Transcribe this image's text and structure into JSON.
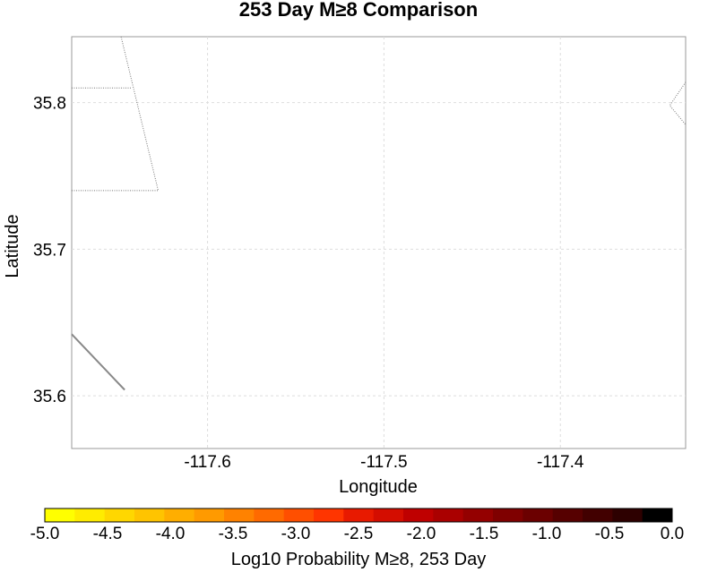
{
  "map": {
    "title": "253 Day M≥8 Comparison",
    "xlabel": "Longitude",
    "ylabel": "Latitude",
    "xlim": [
      -117.677,
      -117.329
    ],
    "ylim": [
      35.564,
      35.845
    ],
    "x_ticks": [
      {
        "value": -117.6,
        "label": "-117.6"
      },
      {
        "value": -117.5,
        "label": "-117.5"
      },
      {
        "value": -117.4,
        "label": "-117.4"
      }
    ],
    "y_ticks": [
      {
        "value": 35.8,
        "label": "35.8"
      },
      {
        "value": 35.7,
        "label": "35.7"
      },
      {
        "value": 35.6,
        "label": "35.6"
      }
    ],
    "grid": true,
    "features": [
      {
        "name": "boundary-line-1",
        "style": "dotted",
        "points": [
          [
            -117.677,
            35.81
          ],
          [
            -117.643,
            35.81
          ]
        ]
      },
      {
        "name": "boundary-line-2",
        "style": "dotted",
        "points": [
          [
            -117.649,
            35.845
          ],
          [
            -117.628,
            35.74
          ]
        ]
      },
      {
        "name": "boundary-line-3",
        "style": "dotted",
        "points": [
          [
            -117.677,
            35.74
          ],
          [
            -117.628,
            35.74
          ]
        ]
      },
      {
        "name": "boundary-line-4",
        "style": "dotted",
        "points": [
          [
            -117.329,
            35.814
          ],
          [
            -117.338,
            35.798
          ],
          [
            -117.329,
            35.785
          ]
        ]
      },
      {
        "name": "fault-trace",
        "style": "solid",
        "points": [
          [
            -117.677,
            35.642
          ],
          [
            -117.647,
            35.604
          ]
        ]
      }
    ]
  },
  "colorbar": {
    "label": "Log10 Probability M≥8, 253 Day",
    "min": -5.0,
    "max": 0.0,
    "tick_labels": [
      "-5.0",
      "-4.5",
      "-4.0",
      "-3.5",
      "-3.0",
      "-2.5",
      "-2.0",
      "-1.5",
      "-1.0",
      "-0.5",
      "0.0"
    ],
    "colors": [
      "#ffff00",
      "#ffec00",
      "#ffd700",
      "#ffc400",
      "#ffae00",
      "#ff9a00",
      "#ff8200",
      "#ff6a00",
      "#ff4f00",
      "#ff3500",
      "#e81a00",
      "#d40d00",
      "#bf0000",
      "#aa0000",
      "#940000",
      "#7f0000",
      "#6b0000",
      "#560000",
      "#420000",
      "#2d0000",
      "#000000"
    ]
  }
}
